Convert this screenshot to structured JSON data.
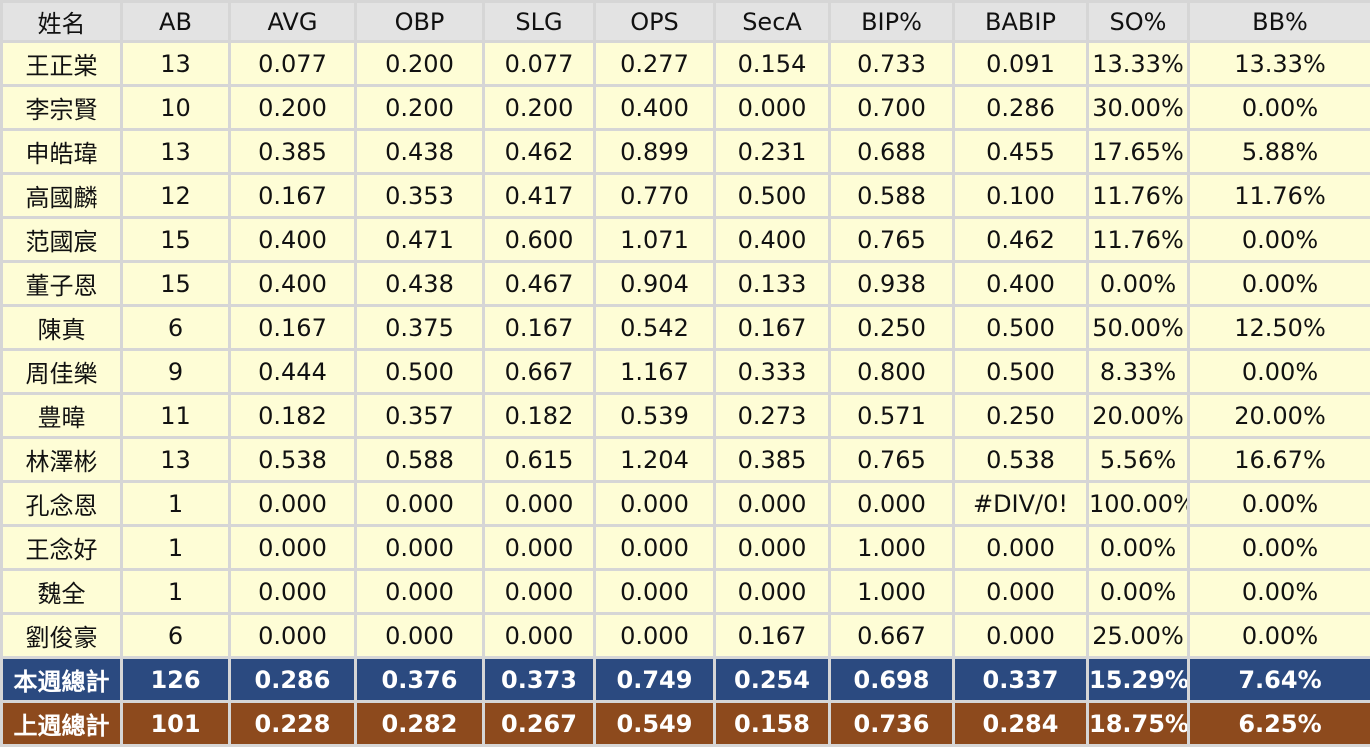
{
  "table": {
    "headers": [
      "姓名",
      "AB",
      "AVG",
      "OBP",
      "SLG",
      "OPS",
      "SecA",
      "BIP%",
      "BABIP",
      "SO%",
      "BB%"
    ],
    "rows": [
      [
        "王正棠",
        "13",
        "0.077",
        "0.200",
        "0.077",
        "0.277",
        "0.154",
        "0.733",
        "0.091",
        "13.33%",
        "13.33%"
      ],
      [
        "李宗賢",
        "10",
        "0.200",
        "0.200",
        "0.200",
        "0.400",
        "0.000",
        "0.700",
        "0.286",
        "30.00%",
        "0.00%"
      ],
      [
        "申皓瑋",
        "13",
        "0.385",
        "0.438",
        "0.462",
        "0.899",
        "0.231",
        "0.688",
        "0.455",
        "17.65%",
        "5.88%"
      ],
      [
        "高國麟",
        "12",
        "0.167",
        "0.353",
        "0.417",
        "0.770",
        "0.500",
        "0.588",
        "0.100",
        "11.76%",
        "11.76%"
      ],
      [
        "范國宸",
        "15",
        "0.400",
        "0.471",
        "0.600",
        "1.071",
        "0.400",
        "0.765",
        "0.462",
        "11.76%",
        "0.00%"
      ],
      [
        "董子恩",
        "15",
        "0.400",
        "0.438",
        "0.467",
        "0.904",
        "0.133",
        "0.938",
        "0.400",
        "0.00%",
        "0.00%"
      ],
      [
        "陳真",
        "6",
        "0.167",
        "0.375",
        "0.167",
        "0.542",
        "0.167",
        "0.250",
        "0.500",
        "50.00%",
        "12.50%"
      ],
      [
        "周佳樂",
        "9",
        "0.444",
        "0.500",
        "0.667",
        "1.167",
        "0.333",
        "0.800",
        "0.500",
        "8.33%",
        "0.00%"
      ],
      [
        "豊暐",
        "11",
        "0.182",
        "0.357",
        "0.182",
        "0.539",
        "0.273",
        "0.571",
        "0.250",
        "20.00%",
        "20.00%"
      ],
      [
        "林澤彬",
        "13",
        "0.538",
        "0.588",
        "0.615",
        "1.204",
        "0.385",
        "0.765",
        "0.538",
        "5.56%",
        "16.67%"
      ],
      [
        "孔念恩",
        "1",
        "0.000",
        "0.000",
        "0.000",
        "0.000",
        "0.000",
        "0.000",
        "#DIV/0!",
        "100.00%",
        "0.00%"
      ],
      [
        "王念好",
        "1",
        "0.000",
        "0.000",
        "0.000",
        "0.000",
        "0.000",
        "1.000",
        "0.000",
        "0.00%",
        "0.00%"
      ],
      [
        "魏全",
        "1",
        "0.000",
        "0.000",
        "0.000",
        "0.000",
        "0.000",
        "1.000",
        "0.000",
        "0.00%",
        "0.00%"
      ],
      [
        "劉俊豪",
        "6",
        "0.000",
        "0.000",
        "0.000",
        "0.000",
        "0.167",
        "0.667",
        "0.000",
        "25.00%",
        "0.00%"
      ]
    ],
    "totals": [
      {
        "kind": "this-week",
        "cells": [
          "本週總計",
          "126",
          "0.286",
          "0.376",
          "0.373",
          "0.749",
          "0.254",
          "0.698",
          "0.337",
          "15.29%",
          "7.64%"
        ]
      },
      {
        "kind": "last-week",
        "cells": [
          "上週總計",
          "101",
          "0.228",
          "0.282",
          "0.267",
          "0.549",
          "0.158",
          "0.736",
          "0.284",
          "18.75%",
          "6.25%"
        ]
      }
    ]
  },
  "colors": {
    "header_bg": "#e3e3e3",
    "row_bg": "#fefdd6",
    "grid": "#d6d6d6",
    "this_week_bg": "#2b4a80",
    "last_week_bg": "#8d4a1d"
  }
}
